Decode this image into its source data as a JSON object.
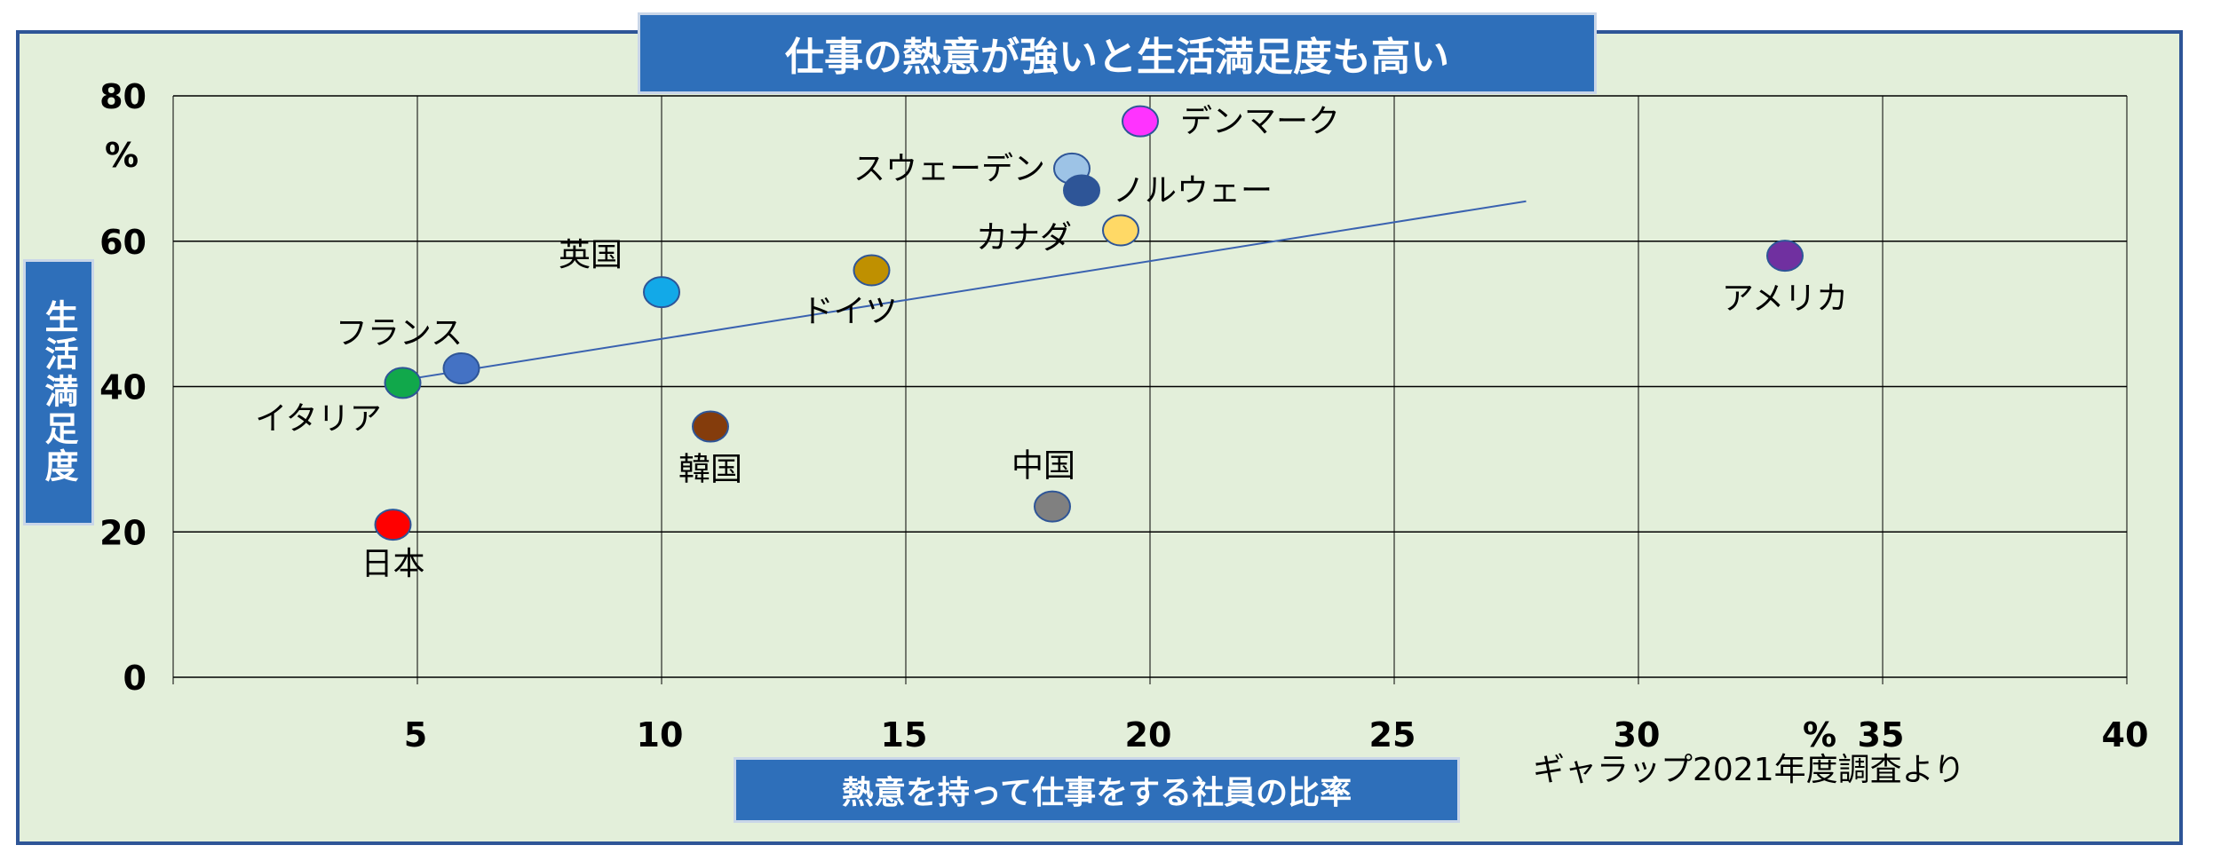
{
  "chart_data": {
    "type": "scatter",
    "title": "仕事の熱意が強いと生活満足度も高い",
    "xlabel": "熱意を持って仕事をする社員の比率",
    "ylabel": "生活満足度",
    "x_unit": "%",
    "y_unit": "%",
    "xlim": [
      0,
      40
    ],
    "ylim": [
      0,
      80
    ],
    "x_ticks": [
      "5",
      "10",
      "15",
      "20",
      "25",
      "30",
      "35",
      "40"
    ],
    "y_ticks": [
      "0",
      "20",
      "40",
      "60",
      "80"
    ],
    "grid": true,
    "source": "ギャラップ2021年度調査より",
    "points": [
      {
        "label": "日本",
        "x": 4.5,
        "y": 21,
        "color": "#ff0000"
      },
      {
        "label": "イタリア",
        "x": 4.7,
        "y": 40.5,
        "color": "#11a84b"
      },
      {
        "label": "フランス",
        "x": 5.9,
        "y": 42.5,
        "color": "#4472c4"
      },
      {
        "label": "英国",
        "x": 10.0,
        "y": 53,
        "color": "#12a9e8"
      },
      {
        "label": "韓国",
        "x": 11.0,
        "y": 34.5,
        "color": "#843c0c"
      },
      {
        "label": "ドイツ",
        "x": 14.3,
        "y": 56,
        "color": "#bf9000"
      },
      {
        "label": "中国",
        "x": 18.0,
        "y": 23.5,
        "color": "#808080"
      },
      {
        "label": "スウェーデン",
        "x": 18.4,
        "y": 70,
        "color": "#9dc3e6"
      },
      {
        "label": "ノルウェー",
        "x": 18.6,
        "y": 67,
        "color": "#2e5597"
      },
      {
        "label": "カナダ",
        "x": 19.4,
        "y": 61.5,
        "color": "#ffd966"
      },
      {
        "label": "デンマーク",
        "x": 19.8,
        "y": 76.5,
        "color": "#ff33ff"
      },
      {
        "label": "アメリカ",
        "x": 33.0,
        "y": 58,
        "color": "#7030a0"
      }
    ],
    "trendline": {
      "x": [
        4.8,
        27.7
      ],
      "y": [
        41,
        65.5
      ],
      "color": "#3a62b0"
    }
  }
}
